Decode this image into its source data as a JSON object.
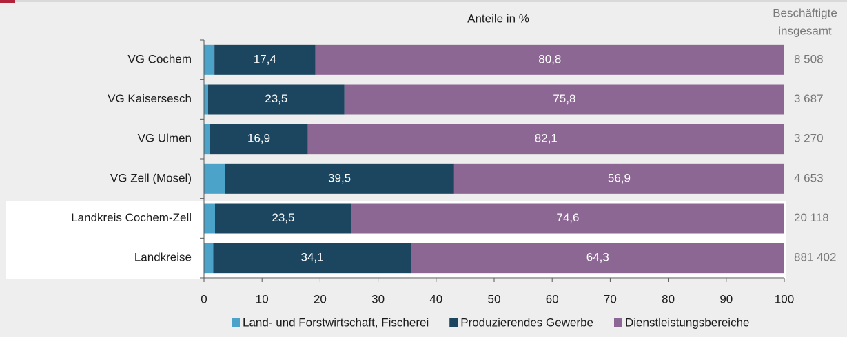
{
  "chart_data": {
    "type": "stacked-barh",
    "title": "Anteile in %",
    "categories": [
      "VG Cochem",
      "VG Kaisersesch",
      "VG Ulmen",
      "VG Zell (Mosel)",
      "Landkreis Cochem-Zell",
      "Landkreise"
    ],
    "series": [
      {
        "name": "Land- und Forstwirtschaft, Fischerei",
        "color": "#4ba3c9",
        "values": [
          1.8,
          0.7,
          1.0,
          3.6,
          1.9,
          1.6
        ]
      },
      {
        "name": "Produzierendes Gewerbe",
        "color": "#1c4660",
        "values": [
          17.4,
          23.5,
          16.9,
          39.5,
          23.5,
          34.1
        ],
        "value_labels": [
          "17,4",
          "23,5",
          "16,9",
          "39,5",
          "23,5",
          "34,1"
        ]
      },
      {
        "name": "Dienstleistungsbereiche",
        "color": "#8d6794",
        "values": [
          80.8,
          75.8,
          82.1,
          56.9,
          74.6,
          64.3
        ],
        "value_labels": [
          "80,8",
          "75,8",
          "82,1",
          "56,9",
          "74,6",
          "64,3"
        ]
      }
    ],
    "xlim": [
      0,
      100
    ],
    "xticks": [
      0,
      10,
      20,
      30,
      40,
      50,
      60,
      70,
      80,
      90,
      100
    ],
    "legend": "bottom",
    "totals": {
      "title": [
        "Beschäftigte",
        "insgesamt"
      ],
      "values": [
        8508,
        3687,
        3270,
        4653,
        20118,
        881402
      ],
      "value_labels": [
        "8 508",
        "3 687",
        "3 270",
        "4 653",
        "20 118",
        "881 402"
      ]
    }
  }
}
